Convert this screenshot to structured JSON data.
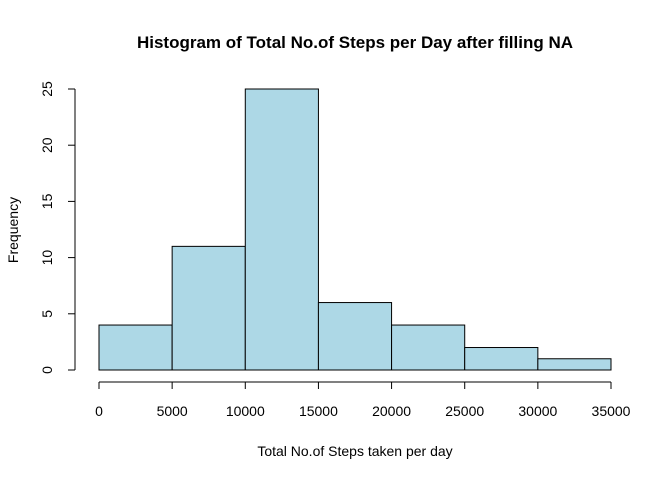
{
  "chart_data": {
    "type": "bar",
    "title": "Histogram of Total No.of Steps per Day after filling NA",
    "xlabel": "Total No.of Steps taken per day",
    "ylabel": "Frequency",
    "bins": [
      {
        "from": 0,
        "to": 5000,
        "count": 4
      },
      {
        "from": 5000,
        "to": 10000,
        "count": 11
      },
      {
        "from": 10000,
        "to": 15000,
        "count": 25
      },
      {
        "from": 15000,
        "to": 20000,
        "count": 6
      },
      {
        "from": 20000,
        "to": 25000,
        "count": 4
      },
      {
        "from": 25000,
        "to": 30000,
        "count": 2
      },
      {
        "from": 30000,
        "to": 35000,
        "count": 1
      }
    ],
    "xlim": [
      0,
      35000
    ],
    "ylim": [
      0,
      25
    ],
    "x_ticks": [
      0,
      5000,
      10000,
      15000,
      20000,
      25000,
      30000,
      35000
    ],
    "y_ticks": [
      0,
      5,
      10,
      15,
      20,
      25
    ],
    "bar_color": "#add8e6",
    "grid": false
  }
}
